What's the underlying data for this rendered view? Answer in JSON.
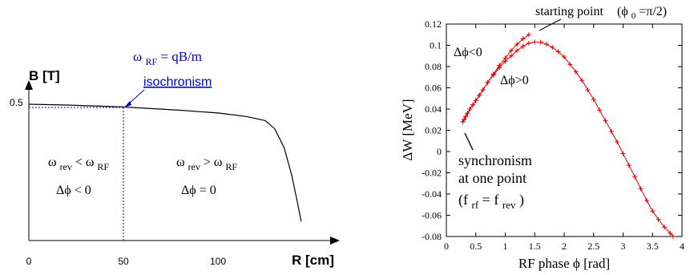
{
  "chart_data": [
    {
      "type": "line",
      "xlabel": "R [cm]",
      "ylabel": "B [T]",
      "x_ticks": [
        "0",
        "50",
        "100"
      ],
      "y_ticks": [
        "0.5"
      ],
      "xlim": [
        0,
        145
      ],
      "ylim": [
        0,
        0.62
      ],
      "series": [
        {
          "x": [
            0,
            20,
            50,
            80,
            100,
            115,
            125,
            130,
            135,
            139,
            142,
            144
          ],
          "values": [
            0.5,
            0.497,
            0.49,
            0.478,
            0.468,
            0.455,
            0.44,
            0.41,
            0.34,
            0.24,
            0.14,
            0.07
          ]
        }
      ],
      "annotations": {
        "formula_omega": "ω",
        "formula_sub": "RF",
        "formula_rest": " = qB/m",
        "isochronism": "isochronism",
        "left_omega": "ω",
        "left_sub1": "rev",
        "left_mid": "< ω",
        "left_sub2": "RF",
        "left_phase": "Δϕ < 0",
        "right_omega": "ω",
        "right_sub1": "rev",
        "right_mid": "> ω",
        "right_sub2": "RF",
        "right_phase": "Δϕ = 0"
      },
      "colors": {
        "curve": "#000000",
        "annotation": "#0000cc",
        "guide": "#0000cc"
      }
    },
    {
      "type": "line",
      "xlabel": "RF phase ϕ [rad]",
      "ylabel": "ΔW [MeV]",
      "xlim": [
        0,
        4
      ],
      "ylim": [
        -0.08,
        0.12
      ],
      "x_ticks": [
        "0",
        "0.5",
        "1",
        "1.5",
        "2",
        "2.5",
        "3",
        "3.5",
        "4"
      ],
      "y_ticks": [
        "-0.08",
        "-0.06",
        "-0.04",
        "-0.02",
        "0",
        "0.02",
        "0.04",
        "0.06",
        "0.08",
        "0.1",
        "0.12"
      ],
      "series": [
        {
          "x": [
            1.4,
            1.3,
            1.2,
            1.1,
            1.0,
            0.9,
            0.8,
            0.7,
            0.62,
            0.56,
            0.5,
            0.45,
            0.4,
            0.36,
            0.33,
            0.3,
            0.28
          ],
          "values": [
            0.11,
            0.106,
            0.101,
            0.095,
            0.088,
            0.081,
            0.073,
            0.065,
            0.058,
            0.053,
            0.048,
            0.044,
            0.04,
            0.036,
            0.033,
            0.03,
            0.028
          ]
        },
        {
          "x": [
            0.28,
            0.3,
            0.33,
            0.36,
            0.4,
            0.45,
            0.5,
            0.56,
            0.62,
            0.7,
            0.8,
            0.9,
            1.0,
            1.1,
            1.2,
            1.3,
            1.4,
            1.5,
            1.6,
            1.7,
            1.8,
            1.9,
            2.0,
            2.1,
            2.2,
            2.3,
            2.4,
            2.5,
            2.6,
            2.7,
            2.8,
            2.9,
            3.0,
            3.1,
            3.2,
            3.3,
            3.4,
            3.5,
            3.6,
            3.7,
            3.8,
            3.85
          ],
          "values": [
            0.028,
            0.03,
            0.033,
            0.036,
            0.04,
            0.044,
            0.048,
            0.053,
            0.058,
            0.065,
            0.072,
            0.079,
            0.085,
            0.09,
            0.095,
            0.099,
            0.102,
            0.103,
            0.103,
            0.101,
            0.098,
            0.094,
            0.089,
            0.082,
            0.075,
            0.067,
            0.058,
            0.049,
            0.039,
            0.029,
            0.019,
            0.009,
            -0.002,
            -0.013,
            -0.024,
            -0.035,
            -0.046,
            -0.056,
            -0.064,
            -0.071,
            -0.077,
            -0.08
          ]
        }
      ],
      "annotations": {
        "starting_point": "starting point",
        "start_cond": "(ϕ",
        "start_sub": "0",
        "start_rest": "=π/2)",
        "dphi_neg": "Δϕ<0",
        "dphi_pos": "Δϕ>0",
        "sync1": "synchronism",
        "sync2": "at one point",
        "freq_open": "(f",
        "freq_sub1": "rf",
        "freq_mid": " = f",
        "freq_sub2": "rev",
        "freq_close": ")"
      },
      "colors": {
        "series": "#dd0000",
        "axes": "#000000"
      }
    }
  ]
}
